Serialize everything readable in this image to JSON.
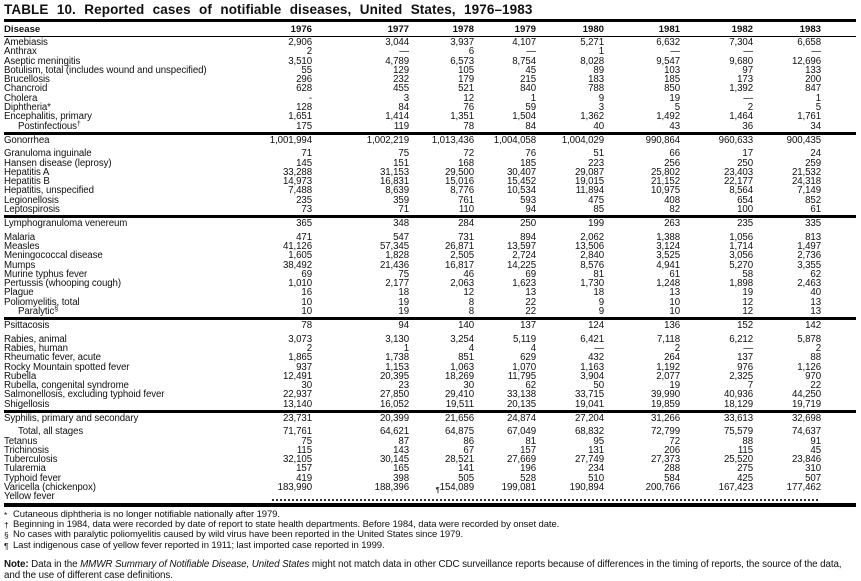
{
  "title": "TABLE 10. Reported cases of notifiable diseases, United States, 1976–1983",
  "columns": {
    "disease_header": "Disease",
    "years": [
      "1976",
      "1977",
      "1978",
      "1979",
      "1980",
      "1981",
      "1982",
      "1983"
    ]
  },
  "sections": [
    {
      "rows": [
        {
          "label": "Amebiasis",
          "values": [
            "2,906",
            "3,044",
            "3,937",
            "4,107",
            "5,271",
            "6,632",
            "7,304",
            "6,658"
          ]
        },
        {
          "label": "Anthrax",
          "values": [
            "2",
            "—",
            "6",
            "—",
            "1",
            "—",
            "—",
            "—"
          ]
        },
        {
          "label": "Aseptic meningitis",
          "values": [
            "3,510",
            "4,789",
            "6,573",
            "8,754",
            "8,028",
            "9,547",
            "9,680",
            "12,696"
          ]
        },
        {
          "label": "Botulism, total (includes wound and unspecified)",
          "values": [
            "55",
            "129",
            "105",
            "45",
            "89",
            "103",
            "97",
            "133"
          ]
        },
        {
          "label": "Brucellosis",
          "values": [
            "296",
            "232",
            "179",
            "215",
            "183",
            "185",
            "173",
            "200"
          ]
        },
        {
          "label": "Chancroid",
          "values": [
            "628",
            "455",
            "521",
            "840",
            "788",
            "850",
            "1,392",
            "847"
          ]
        },
        {
          "label": "Cholera",
          "values": [
            "-",
            "3",
            "12",
            "1",
            "9",
            "19",
            "—",
            "1"
          ]
        },
        {
          "label": "Diphtheria*",
          "values": [
            "128",
            "84",
            "76",
            "59",
            "3",
            "5",
            "2",
            "5"
          ]
        },
        {
          "label": "Encephalitis, primary",
          "values": [
            "1,651",
            "1,414",
            "1,351",
            "1,504",
            "1,362",
            "1,492",
            "1,464",
            "1,761"
          ]
        },
        {
          "label": "Postinfectious",
          "sup": "†",
          "indent": true,
          "values": [
            "175",
            "119",
            "78",
            "84",
            "40",
            "43",
            "36",
            "34"
          ]
        }
      ]
    },
    {
      "rows": [
        {
          "label": "Gonorrhea",
          "values": [
            "1,001,994",
            "1,002,219",
            "1,013,436",
            "1,004,058",
            "1,004,029",
            "990,864",
            "960,633",
            "900,435"
          ]
        },
        {
          "label": "Granuloma inguinale",
          "gap": true,
          "values": [
            "71",
            "75",
            "72",
            "76",
            "51",
            "66",
            "17",
            "24"
          ]
        },
        {
          "label": "Hansen disease (leprosy)",
          "values": [
            "145",
            "151",
            "168",
            "185",
            "223",
            "256",
            "250",
            "259"
          ]
        },
        {
          "label": "Hepatitis A",
          "values": [
            "33,288",
            "31,153",
            "29,500",
            "30,407",
            "29,087",
            "25,802",
            "23,403",
            "21,532"
          ]
        },
        {
          "label": "Hepatitis B",
          "values": [
            "14,973",
            "16,831",
            "15,016",
            "15,452",
            "19,015",
            "21,152",
            "22,177",
            "24,318"
          ]
        },
        {
          "label": "Hepatitis, unspecified",
          "values": [
            "7,488",
            "8,639",
            "8,776",
            "10,534",
            "11,894",
            "10,975",
            "8,564",
            "7,149"
          ]
        },
        {
          "label": "Legionellosis",
          "values": [
            "235",
            "359",
            "761",
            "593",
            "475",
            "408",
            "654",
            "852"
          ]
        },
        {
          "label": "Leptospirosis",
          "values": [
            "73",
            "71",
            "110",
            "94",
            "85",
            "82",
            "100",
            "61"
          ]
        }
      ]
    },
    {
      "rows": [
        {
          "label": "Lymphogranuloma venereum",
          "values": [
            "365",
            "348",
            "284",
            "250",
            "199",
            "263",
            "235",
            "335"
          ]
        },
        {
          "label": "Malaria",
          "gap": true,
          "values": [
            "471",
            "547",
            "731",
            "894",
            "2,062",
            "1,388",
            "1,056",
            "813"
          ]
        },
        {
          "label": "Measles",
          "values": [
            "41,126",
            "57,345",
            "26,871",
            "13,597",
            "13,506",
            "3,124",
            "1,714",
            "1,497"
          ]
        },
        {
          "label": "Meningococcal disease",
          "values": [
            "1,605",
            "1,828",
            "2,505",
            "2,724",
            "2,840",
            "3,525",
            "3,056",
            "2,736"
          ]
        },
        {
          "label": "Mumps",
          "values": [
            "38,492",
            "21,436",
            "16,817",
            "14,225",
            "8,576",
            "4,941",
            "5,270",
            "3,355"
          ]
        },
        {
          "label": "Murine typhus fever",
          "values": [
            "69",
            "75",
            "46",
            "69",
            "81",
            "61",
            "58",
            "62"
          ]
        },
        {
          "label": "Pertussis (whooping cough)",
          "values": [
            "1,010",
            "2,177",
            "2,063",
            "1,623",
            "1,730",
            "1,248",
            "1,898",
            "2,463"
          ]
        },
        {
          "label": "Plague",
          "values": [
            "16",
            "18",
            "12",
            "13",
            "18",
            "13",
            "19",
            "40"
          ]
        },
        {
          "label": "Poliomyelitis, total",
          "values": [
            "10",
            "19",
            "8",
            "22",
            "9",
            "10",
            "12",
            "13"
          ]
        },
        {
          "label": "Paralytic",
          "sup": "§",
          "indent": true,
          "values": [
            "10",
            "19",
            "8",
            "22",
            "9",
            "10",
            "12",
            "13"
          ]
        }
      ]
    },
    {
      "rows": [
        {
          "label": "Psittacosis",
          "values": [
            "78",
            "94",
            "140",
            "137",
            "124",
            "136",
            "152",
            "142"
          ]
        },
        {
          "label": "Rabies, animal",
          "gap": true,
          "values": [
            "3,073",
            "3,130",
            "3,254",
            "5,119",
            "6,421",
            "7,118",
            "6,212",
            "5,878"
          ]
        },
        {
          "label": "Rabies, human",
          "values": [
            "2",
            "1",
            "4",
            "4",
            "—",
            "2",
            "—",
            "2"
          ]
        },
        {
          "label": "Rheumatic fever, acute",
          "values": [
            "1,865",
            "1,738",
            "851",
            "629",
            "432",
            "264",
            "137",
            "88"
          ]
        },
        {
          "label": "Rocky Mountain spotted fever",
          "values": [
            "937",
            "1,153",
            "1,063",
            "1,070",
            "1,163",
            "1,192",
            "976",
            "1,126"
          ]
        },
        {
          "label": "Rubella",
          "values": [
            "12,491",
            "20,395",
            "18,269",
            "11,795",
            "3,904",
            "2,077",
            "2,325",
            "970"
          ]
        },
        {
          "label": "Rubella, congenital syndrome",
          "values": [
            "30",
            "23",
            "30",
            "62",
            "50",
            "19",
            "7",
            "22"
          ]
        },
        {
          "label": "Salmonellosis, excluding typhoid fever",
          "values": [
            "22,937",
            "27,850",
            "29,410",
            "33,138",
            "33,715",
            "39,990",
            "40,936",
            "44,250"
          ]
        },
        {
          "label": "Shigellosis",
          "values": [
            "13,140",
            "16,052",
            "19,511",
            "20,135",
            "19,041",
            "19,859",
            "18,129",
            "19,719"
          ]
        }
      ]
    },
    {
      "rows": [
        {
          "label": "Syphilis, primary and secondary",
          "values": [
            "23,731",
            "20,399",
            "21,656",
            "24,874",
            "27,204",
            "31,266",
            "33,613",
            "32,698"
          ]
        },
        {
          "label": "Total, all stages",
          "gap": true,
          "indent": true,
          "values": [
            "71,761",
            "64,621",
            "64,875",
            "67,049",
            "68,832",
            "72,799",
            "75,579",
            "74,637"
          ]
        },
        {
          "label": "Tetanus",
          "values": [
            "75",
            "87",
            "86",
            "81",
            "95",
            "72",
            "88",
            "91"
          ]
        },
        {
          "label": "Trichinosis",
          "values": [
            "115",
            "143",
            "67",
            "157",
            "131",
            "206",
            "115",
            "45"
          ]
        },
        {
          "label": "Tuberculosis",
          "values": [
            "32,105",
            "30,145",
            "28,521",
            "27,669",
            "27,749",
            "27,373",
            "25,520",
            "23,846"
          ]
        },
        {
          "label": "Tularemia",
          "values": [
            "157",
            "165",
            "141",
            "196",
            "234",
            "288",
            "275",
            "310"
          ]
        },
        {
          "label": "Typhoid fever",
          "values": [
            "419",
            "398",
            "505",
            "528",
            "510",
            "584",
            "425",
            "507"
          ]
        },
        {
          "label": "Varicella (chickenpox)",
          "values": [
            "183,990",
            "188,396",
            "154,089",
            "199,081",
            "190,894",
            "200,766",
            "167,423",
            "177,462"
          ]
        },
        {
          "label": "Yellow fever",
          "leader": true,
          "leader_sup": "¶"
        }
      ]
    }
  ],
  "footnotes": [
    {
      "marker": "*",
      "text": "Cutaneous diphtheria is no longer notifiable nationally after 1979."
    },
    {
      "marker": "†",
      "text": "Beginning in 1984, data were recorded by date of report to state health departments. Before 1984, data were recorded by onset date."
    },
    {
      "marker": "§",
      "text": "No cases with paralytic poliomyelitis caused by wild virus have been reported in the United States since 1979."
    },
    {
      "marker": "¶",
      "text": "Last indigenous case of yellow fever reported in 1911; last imported case reported in 1999."
    }
  ],
  "note": {
    "label": "Note:",
    "before": " Data in the ",
    "italic": "MMWR Summary of Notifiable Disease, United States",
    "after": " might not match data in other CDC surveillance reports because of differences in the timing of reports, the source of the data, and the use of different case definitions."
  }
}
